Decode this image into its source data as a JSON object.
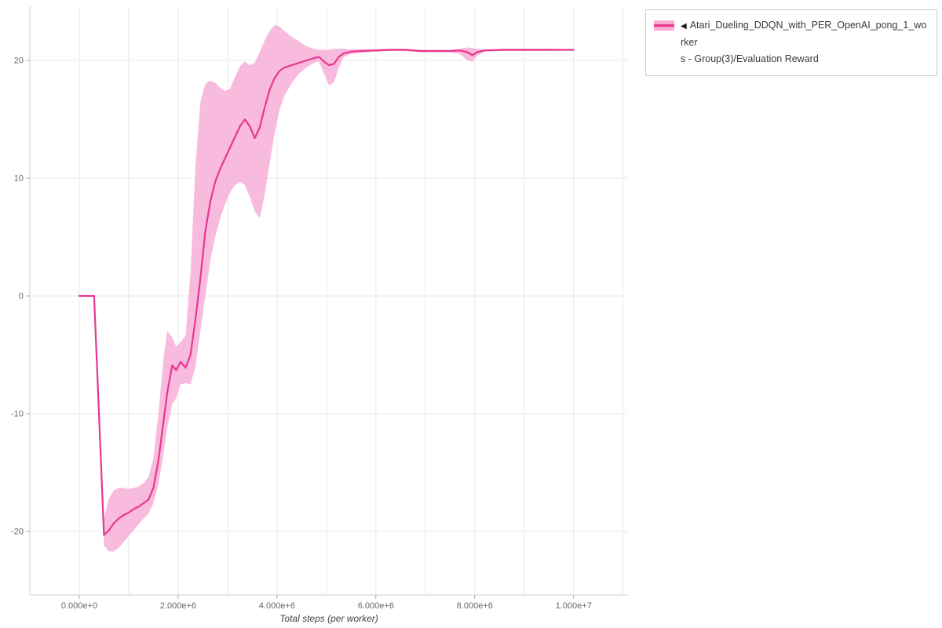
{
  "chart_data": {
    "type": "line",
    "title": "",
    "xlabel": "Total steps (per worker)",
    "ylabel": "",
    "xlim": [
      -1000000,
      11100000
    ],
    "ylim": [
      -25.4,
      24.6
    ],
    "grid": true,
    "legend_position": "top-right",
    "x_minor_grid_step": 1000000,
    "x_minor_grid_max": 11000000,
    "x_ticks": [
      {
        "value": 0,
        "label": "0.000e+0"
      },
      {
        "value": 2000000,
        "label": "2.000e+6"
      },
      {
        "value": 4000000,
        "label": "4.000e+6"
      },
      {
        "value": 6000000,
        "label": "6.000e+6"
      },
      {
        "value": 8000000,
        "label": "8.000e+6"
      },
      {
        "value": 10000000,
        "label": "1.000e+7"
      }
    ],
    "y_ticks": [
      {
        "value": -20,
        "label": "-20"
      },
      {
        "value": -10,
        "label": "-10"
      },
      {
        "value": 0,
        "label": "0"
      },
      {
        "value": 10,
        "label": "10"
      },
      {
        "value": 20,
        "label": "20"
      }
    ],
    "series": [
      {
        "name": "Atari_Dueling_DDQN_with_PER_OpenAI_pong_1_workers - Group(3)/Evaluation Reward",
        "color": "#e8368f",
        "band_color": "#f6aad4",
        "band_opacity": 0.8,
        "points_format": [
          "x",
          "mean",
          "lower",
          "upper"
        ],
        "points": [
          [
            0,
            0,
            0,
            0
          ],
          [
            300000,
            0,
            0,
            0
          ],
          [
            500000,
            -20.3,
            -21.2,
            -18.9
          ],
          [
            600000,
            -19.9,
            -21.7,
            -17.2
          ],
          [
            700000,
            -19.3,
            -21.7,
            -16.5
          ],
          [
            800000,
            -18.9,
            -21.4,
            -16.3
          ],
          [
            900000,
            -18.6,
            -20.9,
            -16.3
          ],
          [
            1000000,
            -18.4,
            -20.4,
            -16.4
          ],
          [
            1100000,
            -18.1,
            -19.9,
            -16.3
          ],
          [
            1200000,
            -17.9,
            -19.4,
            -16.2
          ],
          [
            1300000,
            -17.6,
            -18.9,
            -15.9
          ],
          [
            1400000,
            -17.3,
            -18.5,
            -15.4
          ],
          [
            1500000,
            -16.3,
            -17.6,
            -13.8
          ],
          [
            1600000,
            -14.0,
            -16.0,
            -10.0
          ],
          [
            1700000,
            -10.8,
            -13.5,
            -5.5
          ],
          [
            1780000,
            -8.2,
            -11.2,
            -3.0
          ],
          [
            1880000,
            -5.9,
            -9.2,
            -3.5
          ],
          [
            1960000,
            -6.3,
            -8.7,
            -4.3
          ],
          [
            2050000,
            -5.6,
            -7.5,
            -3.9
          ],
          [
            2150000,
            -6.1,
            -7.4,
            -3.4
          ],
          [
            2250000,
            -5.0,
            -7.5,
            2.0
          ],
          [
            2350000,
            -2.0,
            -6.0,
            11.0
          ],
          [
            2450000,
            1.5,
            -3.0,
            16.5
          ],
          [
            2550000,
            5.5,
            0.0,
            18.0
          ],
          [
            2650000,
            8.0,
            3.0,
            18.3
          ],
          [
            2750000,
            9.7,
            5.0,
            18.1
          ],
          [
            2850000,
            10.8,
            6.6,
            17.7
          ],
          [
            2950000,
            11.7,
            7.8,
            17.4
          ],
          [
            3050000,
            12.6,
            8.8,
            17.6
          ],
          [
            3150000,
            13.5,
            9.4,
            18.6
          ],
          [
            3250000,
            14.4,
            9.7,
            19.5
          ],
          [
            3350000,
            15.0,
            9.4,
            19.9
          ],
          [
            3450000,
            14.4,
            8.4,
            19.6
          ],
          [
            3550000,
            13.4,
            7.2,
            19.8
          ],
          [
            3650000,
            14.3,
            6.6,
            20.7
          ],
          [
            3750000,
            16.0,
            8.6,
            21.7
          ],
          [
            3850000,
            17.5,
            11.2,
            22.5
          ],
          [
            3950000,
            18.5,
            13.8,
            23.0
          ],
          [
            4050000,
            19.1,
            15.8,
            22.9
          ],
          [
            4150000,
            19.4,
            17.0,
            22.5
          ],
          [
            4300000,
            19.6,
            18.1,
            22.0
          ],
          [
            4450000,
            19.8,
            18.9,
            21.6
          ],
          [
            4600000,
            20.0,
            19.4,
            21.2
          ],
          [
            4750000,
            20.2,
            19.8,
            21.0
          ],
          [
            4850000,
            20.3,
            19.9,
            20.9
          ],
          [
            4950000,
            19.9,
            18.9,
            20.9
          ],
          [
            5050000,
            19.6,
            17.9,
            20.9
          ],
          [
            5150000,
            19.7,
            18.1,
            21.0
          ],
          [
            5250000,
            20.3,
            19.4,
            21.0
          ],
          [
            5350000,
            20.6,
            20.3,
            21.0
          ],
          [
            5500000,
            20.75,
            20.55,
            20.95
          ],
          [
            5700000,
            20.8,
            20.65,
            20.95
          ],
          [
            6000000,
            20.85,
            20.75,
            20.95
          ],
          [
            6300000,
            20.9,
            20.8,
            21.0
          ],
          [
            6600000,
            20.9,
            20.8,
            21.0
          ],
          [
            6900000,
            20.8,
            20.7,
            20.9
          ],
          [
            7200000,
            20.8,
            20.7,
            20.9
          ],
          [
            7500000,
            20.8,
            20.7,
            20.9
          ],
          [
            7700000,
            20.85,
            20.55,
            21.0
          ],
          [
            7850000,
            20.7,
            20.0,
            21.1
          ],
          [
            7950000,
            20.45,
            19.9,
            21.05
          ],
          [
            8050000,
            20.7,
            20.4,
            21.0
          ],
          [
            8200000,
            20.85,
            20.75,
            20.95
          ],
          [
            8600000,
            20.9,
            20.8,
            21.0
          ],
          [
            9000000,
            20.9,
            20.8,
            21.0
          ],
          [
            9500000,
            20.9,
            20.8,
            21.0
          ],
          [
            10000000,
            20.9,
            20.85,
            20.95
          ]
        ]
      }
    ]
  },
  "legend": {
    "marker": "◀",
    "line1": "Atari_Dueling_DDQN_with_PER_OpenAI_pong_1_worker",
    "line2": "s - Group(3)/Evaluation Reward",
    "line_color": "#e8368f",
    "band_color": "#f6aad4"
  },
  "colors": {
    "grid": "#e8e8e8",
    "axis_line": "#cfcfcf",
    "tick": "#aaaaaa",
    "tick_label": "#666666"
  }
}
